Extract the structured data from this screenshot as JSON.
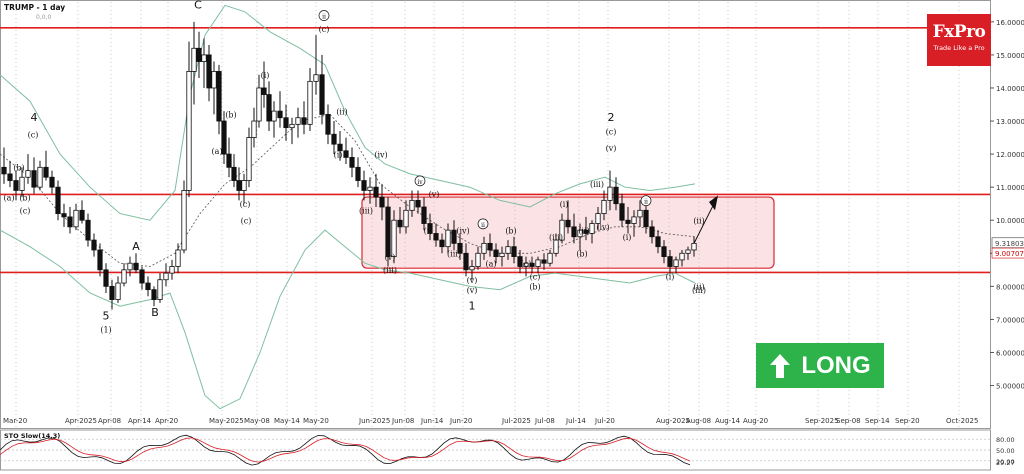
{
  "header": {
    "symbol": "TRUMP - 1 day",
    "subtitle": "0,0,0"
  },
  "brand": {
    "name": "FxPro",
    "tagline": "Trade Like a Pro"
  },
  "signal": {
    "label": "LONG",
    "color": "#2db34a",
    "icon": "up-arrow-icon"
  },
  "chart_data": {
    "type": "candlestick",
    "ylim": [
      4.2,
      16.6
    ],
    "y_ticks": [
      "16.00000",
      "15.00000",
      "14.00000",
      "13.00000",
      "12.00000",
      "11.00000",
      "10.00000",
      "9.00000",
      "8.00000",
      "7.00000",
      "6.00000",
      "5.00000"
    ],
    "price_markers": [
      {
        "label": "9.31803",
        "value": 9.318,
        "color": "#444444"
      },
      {
        "label": "9.00707",
        "value": 9.007,
        "color": "#cc0000"
      }
    ],
    "x_labels": [
      "Mar-20",
      "Apr-2025",
      "Apr-08",
      "Apr-14",
      "Apr-20",
      "May-2025",
      "May-08",
      "May-14",
      "May-20",
      "Jun-2025",
      "Jun-08",
      "Jun-14",
      "Jun-20",
      "Jul-2025",
      "Jul-08",
      "Jul-14",
      "Jul-20",
      "Aug-2025",
      "Aug-08",
      "Aug-14",
      "Aug-20",
      "Sep-2025",
      "Sep-08",
      "Sep-14",
      "Sep-20",
      "Oct-2025"
    ],
    "horizontal_levels": [
      15.82,
      10.78,
      8.42
    ],
    "range_box": {
      "x_start_label": "Jun-2025",
      "x_end_label": "Aug-20",
      "y_low": 8.55,
      "y_high": 10.7
    },
    "wave_labels": [
      "(a)",
      "(b)",
      "(c)",
      "4",
      "(b)",
      "(c)",
      "5",
      "(1)",
      "A",
      "B",
      "C",
      "(a)",
      "(b)",
      "(c)",
      "(c)",
      "(i)",
      "ii",
      "(c)",
      "(ii)",
      "(i)",
      "(iv)",
      "(iii)",
      "(v)",
      "(iii)",
      "iv",
      "(v)",
      "(i)",
      "(iv)",
      "(iii)",
      "ii",
      "(a)",
      "(b)",
      "(v)",
      "(v)",
      "1",
      "(c)",
      "(b)",
      "(b)",
      "(c)",
      "(i)",
      "(iii)",
      "(iv)",
      "(ii)",
      "2",
      "(c)",
      "(v)",
      "(i)",
      "ii",
      "(iii)",
      "(i)",
      "(ii)",
      "(ii)",
      "(iii)"
    ],
    "indicator": {
      "title": "STO Slow(14,3)",
      "ticks": [
        "80.00",
        "50.00",
        "20.00"
      ],
      "current": "29.27"
    }
  }
}
